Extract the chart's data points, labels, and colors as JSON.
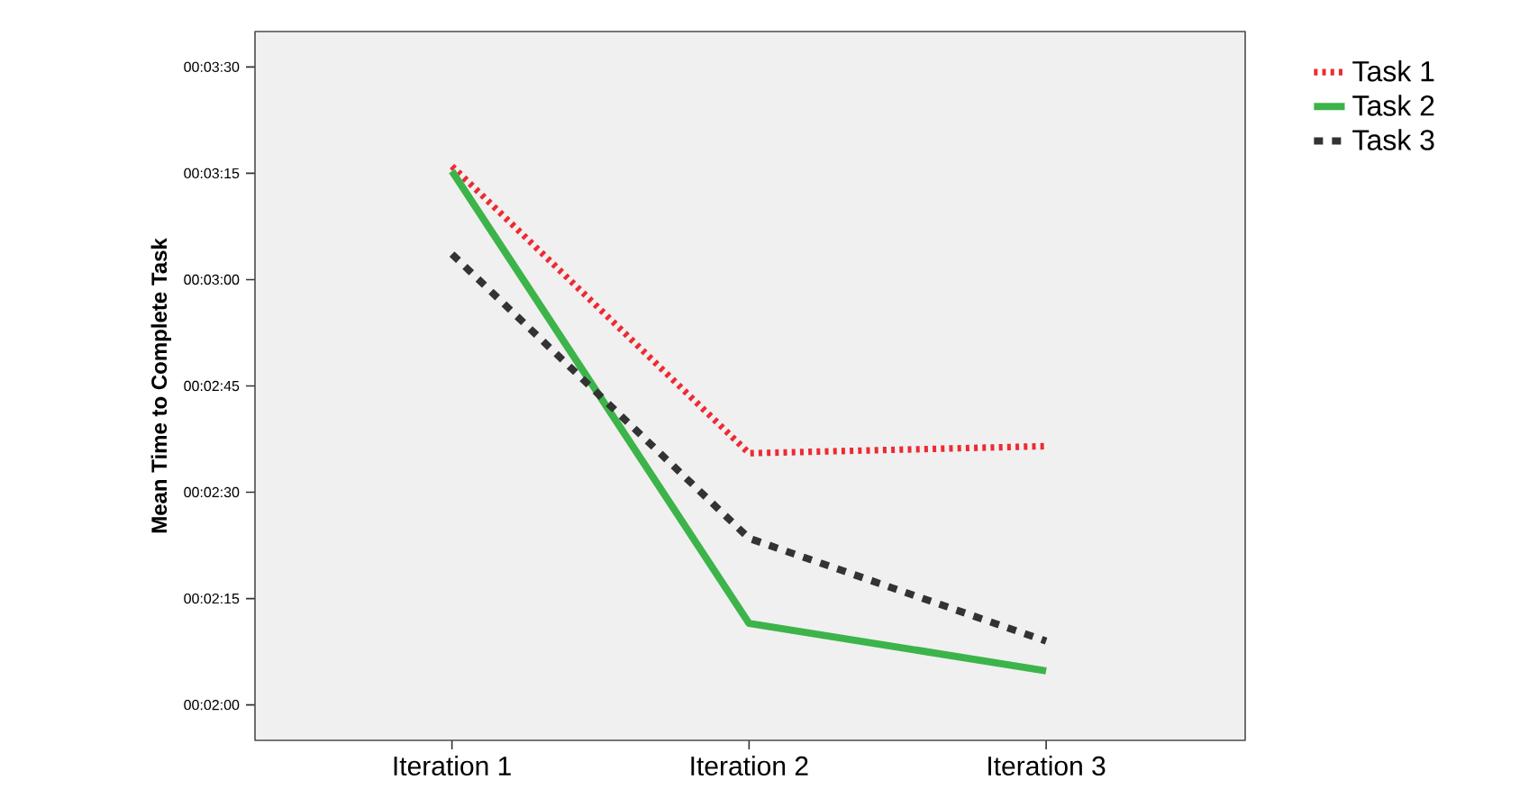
{
  "chart_data": {
    "type": "line",
    "ylabel": "Mean Time to Complete Task",
    "categories": [
      "Iteration 1",
      "Iteration 2",
      "Iteration 3"
    ],
    "series": [
      {
        "name": "Task 1",
        "color": "#ee2a33",
        "line_style": "dotted",
        "values": [
          196,
          155.5,
          156.5
        ]
      },
      {
        "name": "Task 2",
        "color": "#3cb44a",
        "line_style": "solid",
        "values": [
          195.3,
          131.5,
          124.8
        ]
      },
      {
        "name": "Task 3",
        "color": "#333333",
        "line_style": "dashed",
        "values": [
          183.6,
          143.5,
          129
        ]
      }
    ],
    "ylim": [
      115,
      215
    ],
    "yticks": [
      {
        "value": 120,
        "label": "00:02:00"
      },
      {
        "value": 135,
        "label": "00:02:15"
      },
      {
        "value": 150,
        "label": "00:02:30"
      },
      {
        "value": 165,
        "label": "00:02:45"
      },
      {
        "value": 180,
        "label": "00:03:00"
      },
      {
        "value": 195,
        "label": "00:03:15"
      },
      {
        "value": 210,
        "label": "00:03:30"
      }
    ],
    "grid": false,
    "legend": "top right"
  }
}
